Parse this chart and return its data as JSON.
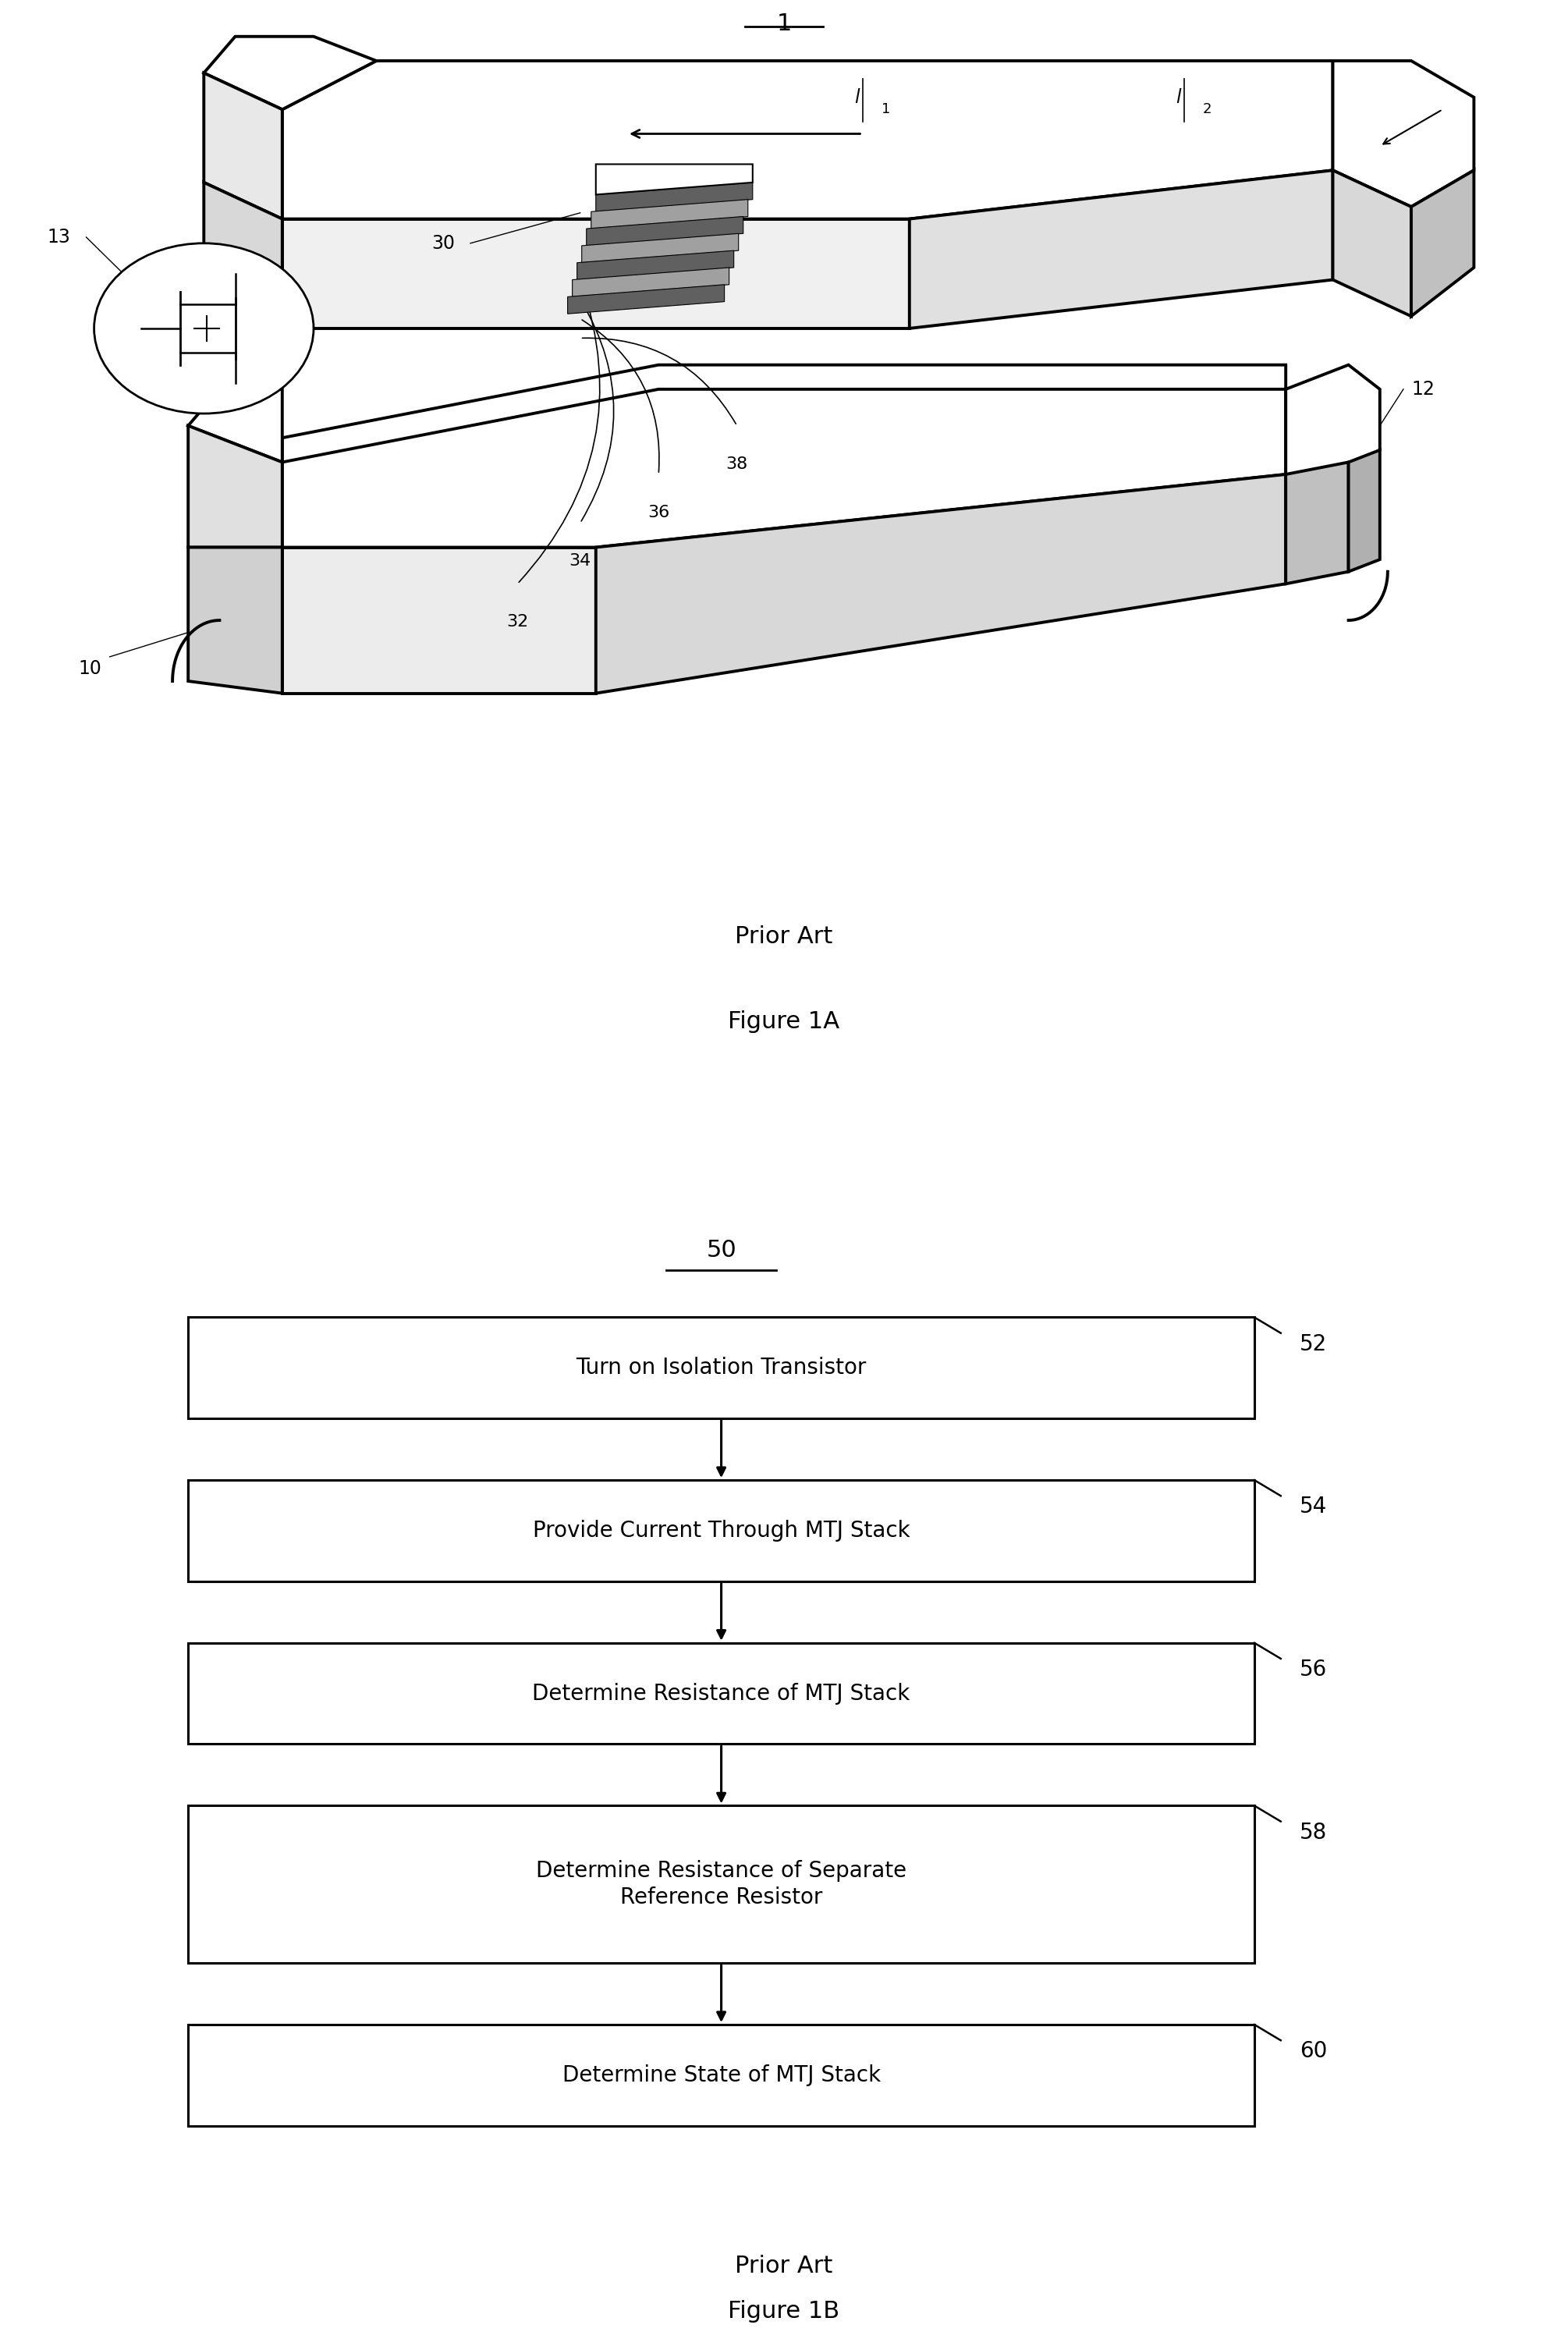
{
  "bg_color": "#ffffff",
  "fig_width": 20.1,
  "fig_height": 29.98,
  "fig1b": {
    "diagram_label": "50",
    "boxes": [
      {
        "label": "52",
        "text": "Turn on Isolation Transistor"
      },
      {
        "label": "54",
        "text": "Provide Current Through MTJ Stack"
      },
      {
        "label": "56",
        "text": "Determine Resistance of MTJ Stack"
      },
      {
        "label": "58",
        "text": "Determine Resistance of Separate\nReference Resistor"
      },
      {
        "label": "60",
        "text": "Determine State of MTJ Stack"
      }
    ],
    "title": "Prior Art",
    "subtitle": "Figure 1B"
  }
}
